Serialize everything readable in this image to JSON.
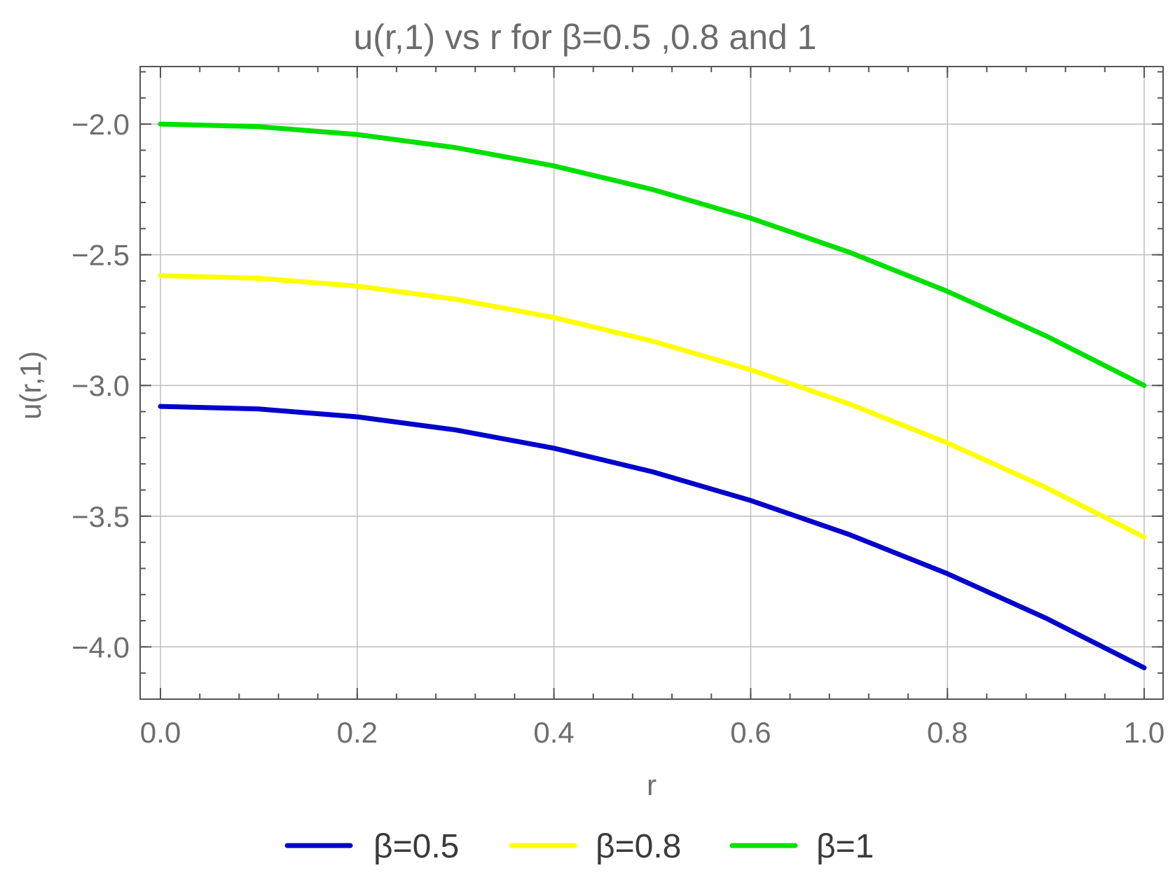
{
  "chart_data": {
    "type": "line",
    "title": "u(r,1) vs r for β=0.5 ,0.8 and 1",
    "xlabel": "r",
    "ylabel": "u(r,1)",
    "xlim": [
      0.0,
      1.0
    ],
    "ylim": [
      -4.2,
      -1.78
    ],
    "x_ticks": [
      "0.0",
      "0.2",
      "0.4",
      "0.6",
      "0.8",
      "1.0"
    ],
    "x_tick_values": [
      0.0,
      0.2,
      0.4,
      0.6,
      0.8,
      1.0
    ],
    "y_ticks": [
      "-2.0",
      "-2.5",
      "-3.0",
      "-3.5",
      "-4.0"
    ],
    "y_tick_values": [
      -2.0,
      -2.5,
      -3.0,
      -3.5,
      -4.0
    ],
    "grid": true,
    "legend_position": "bottom",
    "x": [
      0.0,
      0.1,
      0.2,
      0.3,
      0.4,
      0.5,
      0.6,
      0.7,
      0.8,
      0.9,
      1.0
    ],
    "series": [
      {
        "name": "β=0.5",
        "color": "#0000cc",
        "values": [
          -3.08,
          -3.09,
          -3.12,
          -3.17,
          -3.24,
          -3.33,
          -3.44,
          -3.57,
          -3.72,
          -3.89,
          -4.08
        ]
      },
      {
        "name": "β=0.8",
        "color": "#ffff00",
        "values": [
          -2.58,
          -2.59,
          -2.62,
          -2.67,
          -2.74,
          -2.83,
          -2.94,
          -3.07,
          -3.22,
          -3.39,
          -3.58
        ]
      },
      {
        "name": "β=1",
        "color": "#00e000",
        "values": [
          -2.0,
          -2.01,
          -2.04,
          -2.09,
          -2.16,
          -2.25,
          -2.36,
          -2.49,
          -2.64,
          -2.81,
          -3.0
        ]
      }
    ]
  }
}
